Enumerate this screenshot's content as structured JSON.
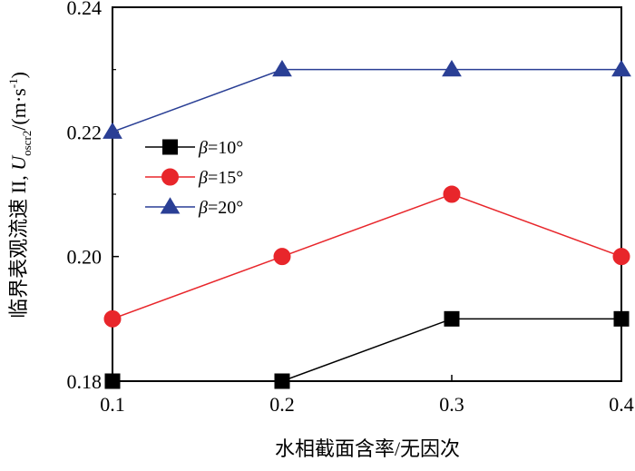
{
  "chart_data": {
    "type": "line",
    "x": [
      0.1,
      0.2,
      0.3,
      0.4
    ],
    "x_tick_labels": [
      "0.1",
      "0.2",
      "0.3",
      "0.4"
    ],
    "y_tick_labels": [
      "0.18",
      "0.20",
      "0.22",
      "0.24"
    ],
    "y_ticks": [
      0.18,
      0.2,
      0.22,
      0.24
    ],
    "xlim": [
      0.1,
      0.4
    ],
    "ylim": [
      0.18,
      0.24
    ],
    "xlabel": "水相截面含率/无因次",
    "ylabel": {
      "main": "临界表观流速 II, ",
      "symbol": "U",
      "subscript": "oscr2",
      "unit": "/(m·s",
      "unit_exp": "-1",
      "unit_close": ")"
    },
    "grid": false,
    "legend_position": "upper-left",
    "series": [
      {
        "name": "β=10°",
        "name_symbol": "β",
        "name_rest": "=10°",
        "marker": "square",
        "color": "#000000",
        "values": [
          0.18,
          0.18,
          0.19,
          0.19
        ]
      },
      {
        "name": "β=15°",
        "name_symbol": "β",
        "name_rest": "=15°",
        "marker": "circle",
        "color": "#e8262b",
        "values": [
          0.19,
          0.2,
          0.21,
          0.2
        ]
      },
      {
        "name": "β=20°",
        "name_symbol": "β",
        "name_rest": "=20°",
        "marker": "triangle",
        "color": "#2a3f95",
        "values": [
          0.22,
          0.23,
          0.23,
          0.23
        ]
      }
    ]
  }
}
